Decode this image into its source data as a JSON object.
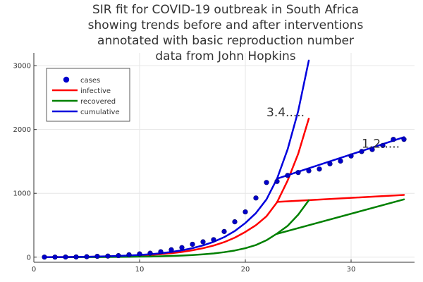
{
  "chart_data": {
    "type": "line",
    "title_lines": [
      "SIR fit for COVID-19 outbreak in South Africa",
      "showing trends before and after interventions",
      "annotated with basic reproduction number",
      "data from John Hopkins"
    ],
    "xlabel": "",
    "ylabel": "",
    "xlim": [
      0,
      36
    ],
    "ylim": [
      -80,
      3200
    ],
    "xticks": [
      0,
      10,
      20,
      30
    ],
    "yticks": [
      0,
      1000,
      2000,
      3000
    ],
    "grid": true,
    "legend_position": "top-left",
    "annotations": [
      {
        "text": "3.4.....",
        "x": 22,
        "y": 2270
      },
      {
        "text": "1.2.....",
        "x": 31,
        "y": 1780
      }
    ],
    "series": [
      {
        "name": "cases",
        "kind": "scatter",
        "color": "#0000cc",
        "x": [
          1,
          2,
          3,
          4,
          5,
          6,
          7,
          8,
          9,
          10,
          11,
          12,
          13,
          14,
          15,
          16,
          17,
          18,
          19,
          20,
          21,
          22,
          23,
          24,
          25,
          26,
          27,
          28,
          29,
          30,
          31,
          32,
          33,
          34,
          35
        ],
        "y": [
          1,
          1,
          2,
          3,
          7,
          13,
          17,
          24,
          38,
          51,
          62,
          85,
          116,
          150,
          202,
          240,
          274,
          402,
          554,
          709,
          927,
          1170,
          1187,
          1280,
          1326,
          1353,
          1380,
          1462,
          1505,
          1585,
          1655,
          1686,
          1749,
          1845,
          1845
        ]
      },
      {
        "name": "infective",
        "kind": "line",
        "color": "#ff0000",
        "x": [
          1,
          2,
          3,
          4,
          5,
          6,
          7,
          8,
          9,
          10,
          11,
          12,
          13,
          14,
          15,
          16,
          17,
          18,
          19,
          20,
          21,
          22,
          23,
          23,
          24,
          25,
          26,
          27,
          28,
          29,
          30,
          31,
          32,
          33,
          34,
          35
        ],
        "y": [
          0,
          1,
          2,
          3,
          5,
          8,
          11,
          15,
          20,
          27,
          35,
          47,
          62,
          82,
          108,
          140,
          182,
          235,
          305,
          395,
          500,
          640,
          860,
          860,
          1200,
          1620,
          2170,
          null,
          null,
          null,
          null,
          null,
          null,
          null,
          null,
          null
        ]
      },
      {
        "name": "infective_after",
        "kind": "line",
        "color": "#ff0000",
        "x": [
          23,
          35
        ],
        "y": [
          865,
          975
        ]
      },
      {
        "name": "recovered",
        "kind": "line",
        "color": "#008000",
        "x": [
          1,
          2,
          3,
          4,
          5,
          6,
          7,
          8,
          9,
          10,
          11,
          12,
          13,
          14,
          15,
          16,
          17,
          18,
          19,
          20,
          21,
          22,
          23,
          24,
          25,
          26
        ],
        "y": [
          0,
          0,
          0,
          1,
          1,
          2,
          3,
          4,
          6,
          8,
          10,
          14,
          19,
          25,
          33,
          44,
          58,
          78,
          104,
          140,
          190,
          265,
          370,
          490,
          665,
          890
        ]
      },
      {
        "name": "recovered_after",
        "kind": "line",
        "color": "#008000",
        "x": [
          23,
          35
        ],
        "y": [
          365,
          905
        ]
      },
      {
        "name": "cumulative",
        "kind": "line",
        "color": "#0000dd",
        "x": [
          1,
          2,
          3,
          4,
          5,
          6,
          7,
          8,
          9,
          10,
          11,
          12,
          13,
          14,
          15,
          16,
          17,
          18,
          19,
          20,
          21,
          22,
          23,
          24,
          25,
          26
        ],
        "y": [
          0,
          1,
          2,
          4,
          6,
          10,
          14,
          19,
          26,
          35,
          45,
          61,
          81,
          107,
          141,
          184,
          240,
          313,
          409,
          535,
          690,
          905,
          1230,
          1690,
          2290,
          3080
        ]
      },
      {
        "name": "cumulative_after",
        "kind": "line",
        "color": "#0000dd",
        "x": [
          23,
          35
        ],
        "y": [
          1230,
          1880
        ]
      }
    ],
    "legend": [
      {
        "label": "cases",
        "marker": "dot",
        "color": "#0000cc"
      },
      {
        "label": "infective",
        "marker": "line",
        "color": "#ff0000"
      },
      {
        "label": "recovered",
        "marker": "line",
        "color": "#008000"
      },
      {
        "label": "cumulative",
        "marker": "line",
        "color": "#0000dd"
      }
    ]
  }
}
